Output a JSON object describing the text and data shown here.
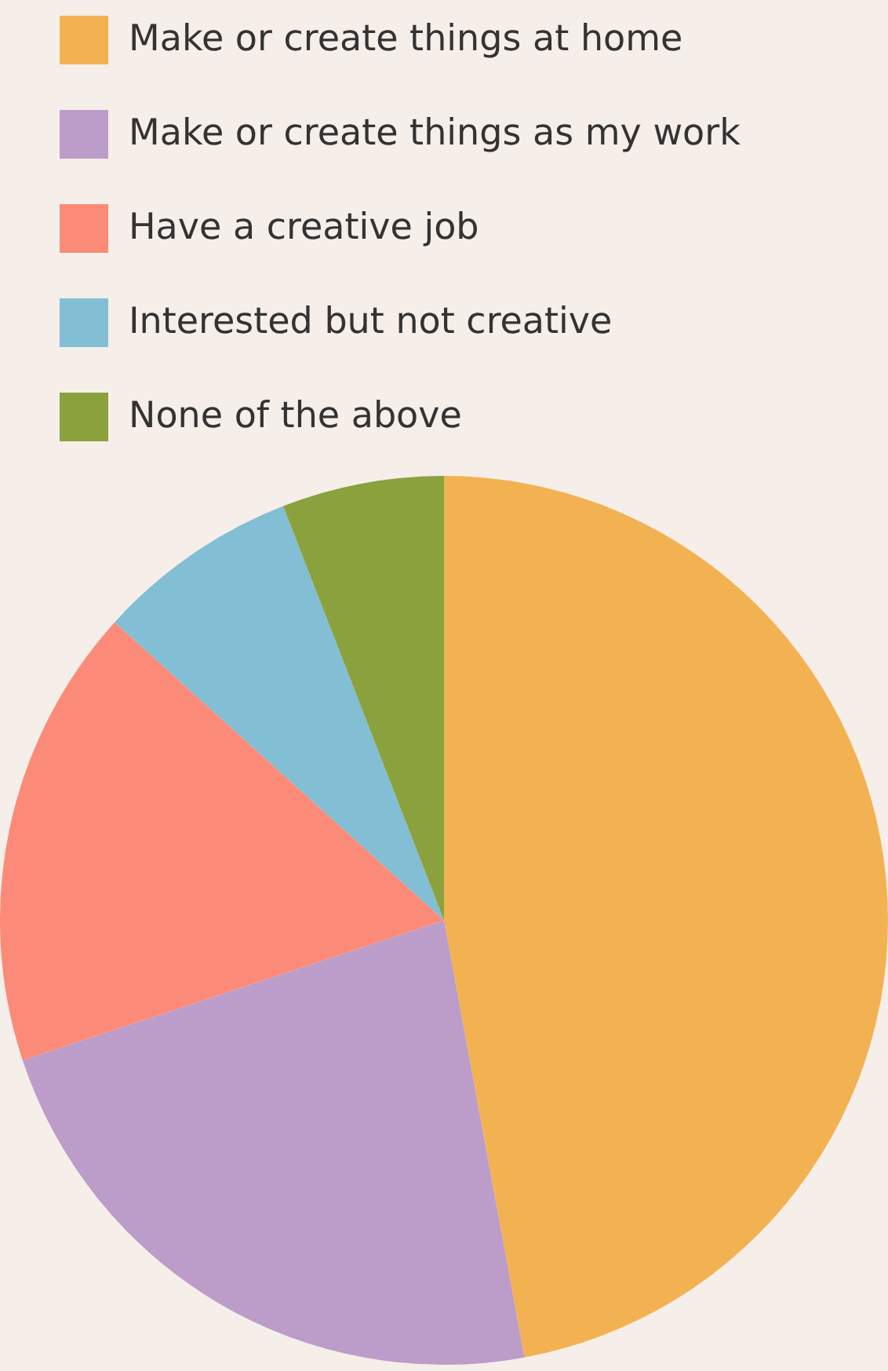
{
  "chart_data": {
    "type": "pie",
    "categories": [
      "Make or create things at home",
      "Make or create things as my work",
      "Have a creative job",
      "Interested but not creative",
      "None of the above"
    ],
    "values": [
      47.1,
      22.8,
      16.8,
      7.4,
      5.9
    ],
    "colors": [
      "#f3b252",
      "#bc9cc8",
      "#fb8b78",
      "#82bed4",
      "#8aa13e"
    ],
    "legend": "top left"
  }
}
